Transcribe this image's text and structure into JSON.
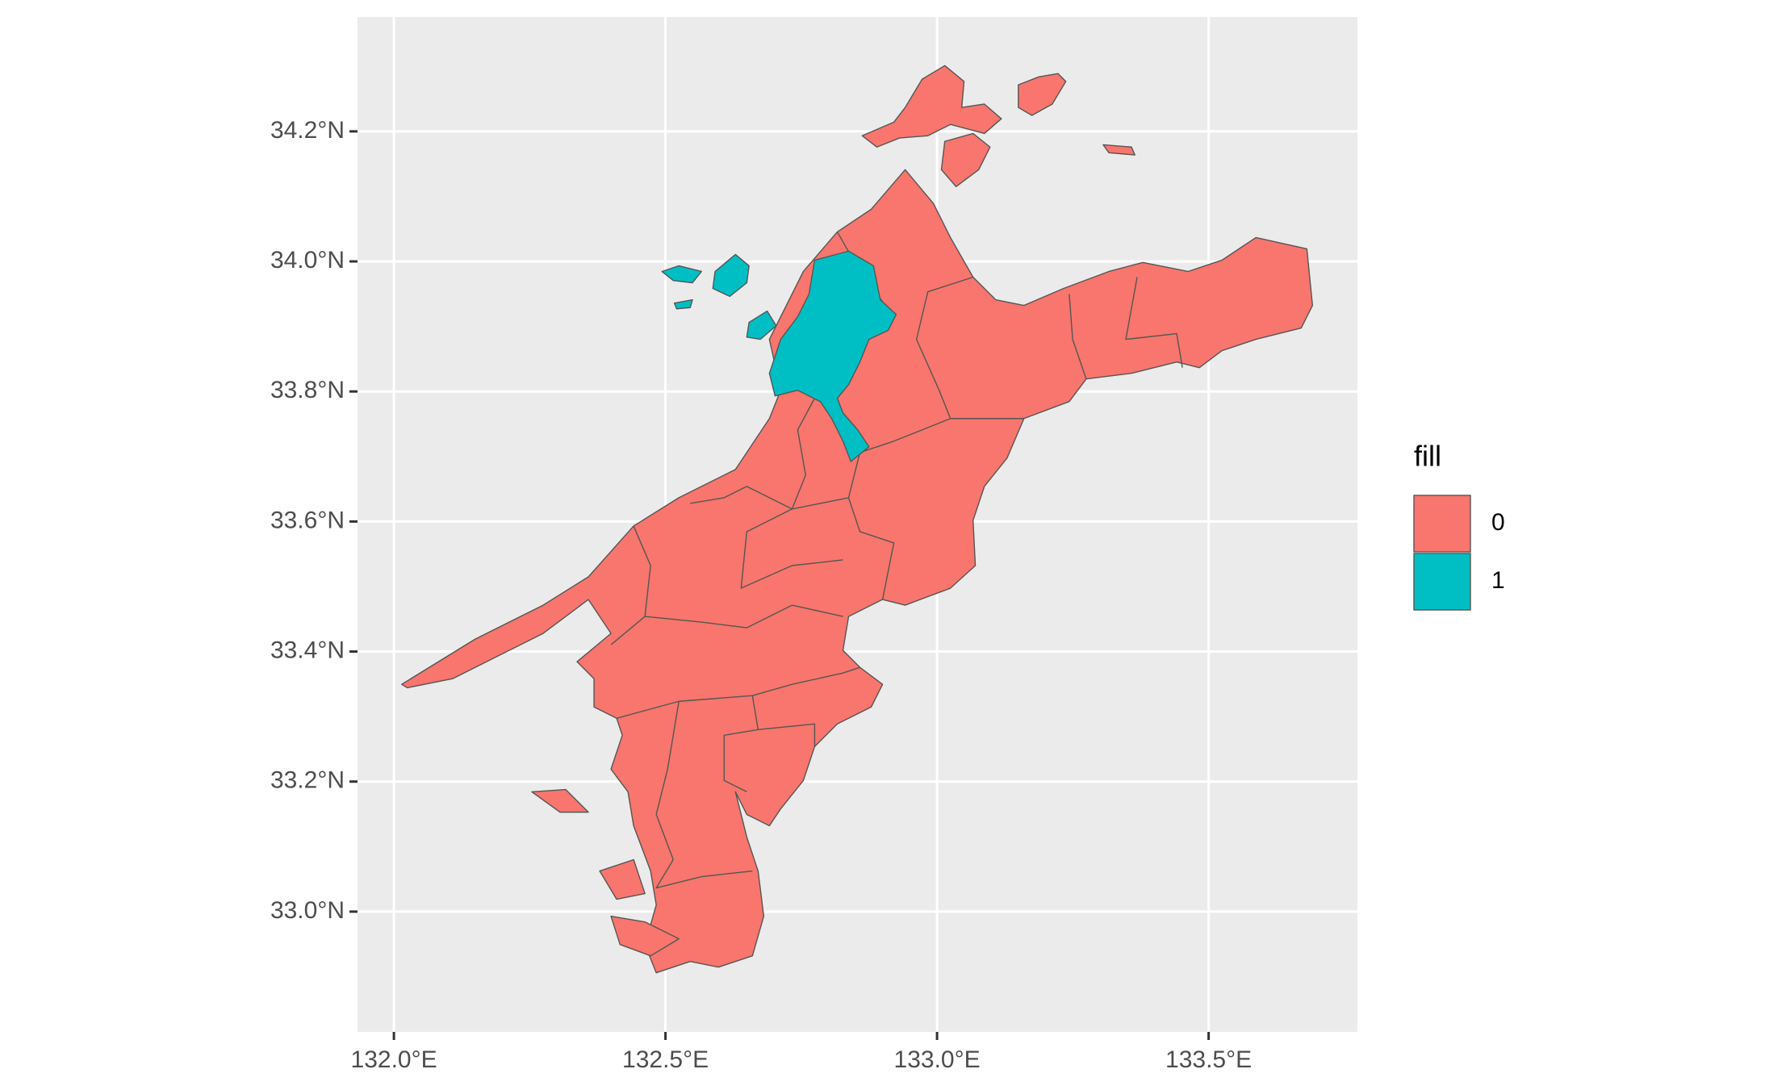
{
  "map": {
    "xlim": [
      131.933,
      133.774
    ],
    "ylim": [
      32.815,
      34.376
    ],
    "xticks": [
      {
        "value": 132.0,
        "label": "132.0°E"
      },
      {
        "value": 132.5,
        "label": "132.5°E"
      },
      {
        "value": 133.0,
        "label": "133.0°E"
      },
      {
        "value": 133.5,
        "label": "133.5°E"
      }
    ],
    "yticks": [
      {
        "value": 33.0,
        "label": "33.0°N"
      },
      {
        "value": 33.2,
        "label": "33.2°N"
      },
      {
        "value": 33.4,
        "label": "33.4°N"
      },
      {
        "value": 33.6,
        "label": "33.6°N"
      },
      {
        "value": 33.8,
        "label": "33.8°N"
      },
      {
        "value": 34.0,
        "label": "34.0°N"
      },
      {
        "value": 34.2,
        "label": "34.2°N"
      }
    ],
    "legend": {
      "title": "fill",
      "entries": [
        {
          "label": "0",
          "color": "#f8766d"
        },
        {
          "label": "1",
          "color": "#00bfc4"
        }
      ]
    }
  }
}
